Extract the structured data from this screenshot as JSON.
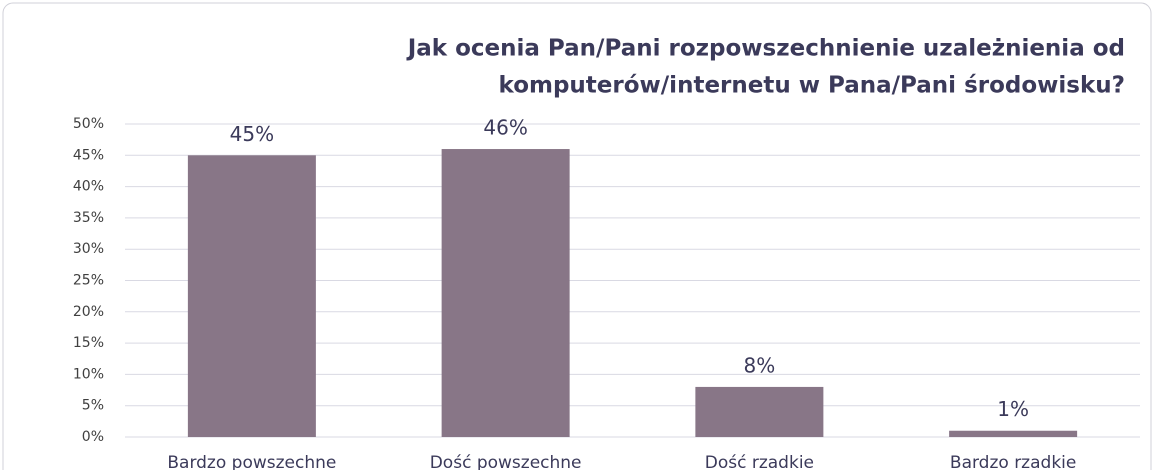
{
  "chart_data": {
    "type": "bar",
    "title": [
      "Jak ocenia Pan/Pani rozpowszechnienie uzależnienia od",
      "komputerów/internetu w Pana/Pani środowisku?"
    ],
    "categories": [
      "Bardzo powszechne",
      "Dość powszechne",
      "Dość rzadkie",
      "Bardzo rzadkie"
    ],
    "values": [
      45,
      46,
      8,
      1
    ],
    "value_labels": [
      "45%",
      "46%",
      "8%",
      "1%"
    ],
    "color": "#887687",
    "ylim": [
      0,
      50
    ],
    "yticks": [
      {
        "value": 0,
        "label": "0%"
      },
      {
        "value": 5,
        "label": "5%"
      },
      {
        "value": 10,
        "label": "10%"
      },
      {
        "value": 15,
        "label": "15%"
      },
      {
        "value": 20,
        "label": "20%"
      },
      {
        "value": 25,
        "label": "25%"
      },
      {
        "value": 30,
        "label": "30%"
      },
      {
        "value": 35,
        "label": "35%"
      },
      {
        "value": 40,
        "label": "40%"
      },
      {
        "value": 45,
        "label": "45%"
      },
      {
        "value": 50,
        "label": "50%"
      }
    ],
    "grid": true
  }
}
